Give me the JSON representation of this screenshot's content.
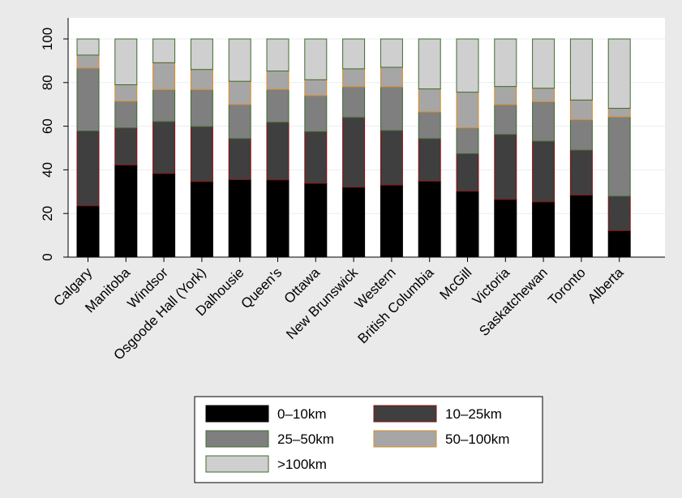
{
  "chart_data": {
    "type": "bar",
    "stacked": true,
    "categories": [
      "Calgary",
      "Manitoba",
      "Windsor",
      "Osgoode Hall (York)",
      "Dalhousie",
      "Queen's",
      "Ottawa",
      "New Brunswick",
      "Western",
      "British Columbia",
      "McGill",
      "Victoria",
      "Saskatchewan",
      "Toronto",
      "Alberta"
    ],
    "series": [
      {
        "name": "0–10km",
        "color": "#000000",
        "values": [
          23.5,
          42.2,
          38.3,
          34.6,
          35.5,
          35.4,
          33.8,
          32.0,
          33.0,
          34.8,
          30.2,
          26.4,
          25.3,
          28.4,
          12.1
        ]
      },
      {
        "name": "10–25km",
        "color": "#3f3f3f",
        "values": [
          34.3,
          17.0,
          23.8,
          25.2,
          18.8,
          26.4,
          23.7,
          32.0,
          25.0,
          19.5,
          17.2,
          29.8,
          27.8,
          20.6,
          15.8
        ]
      },
      {
        "name": "25–50km",
        "color": "#7f7f7f",
        "values": [
          28.8,
          12.2,
          14.6,
          16.9,
          15.6,
          15.0,
          16.5,
          14.0,
          20.0,
          12.2,
          11.8,
          13.6,
          18.1,
          13.9,
          36.3
        ]
      },
      {
        "name": "50–100km",
        "color": "#a6a6a6",
        "values": [
          6.0,
          7.6,
          12.4,
          9.3,
          10.7,
          8.5,
          7.3,
          8.3,
          9.0,
          10.6,
          16.4,
          8.4,
          6.2,
          9.1,
          4.0
        ]
      },
      {
        "name": ">100km",
        "color": "#cfcfcf",
        "values": [
          7.4,
          21.0,
          10.9,
          14.0,
          19.4,
          14.7,
          18.7,
          13.7,
          13.0,
          22.9,
          24.4,
          21.8,
          22.6,
          28.0,
          31.8
        ]
      }
    ],
    "title": "",
    "xlabel": "",
    "ylabel": "",
    "ylim": [
      0,
      100
    ],
    "yticks": [
      "0",
      "20",
      "40",
      "60",
      "80",
      "100"
    ],
    "grid": true,
    "legend_position": "bottom"
  }
}
